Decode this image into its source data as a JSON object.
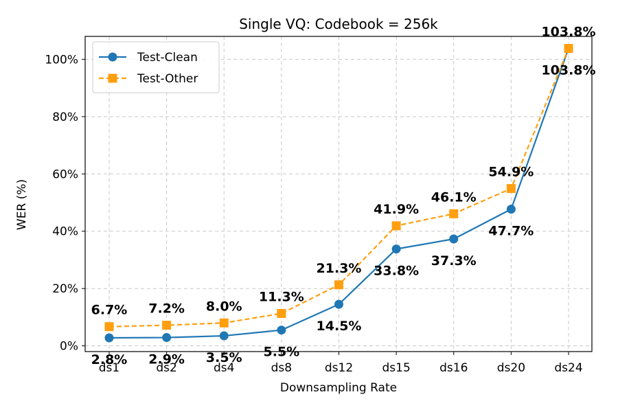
{
  "chart_data": {
    "type": "line",
    "title": "Single VQ: Codebook = 256k",
    "xlabel": "Downsampling Rate",
    "ylabel": "WER (%)",
    "categories": [
      "ds1",
      "ds2",
      "ds4",
      "ds8",
      "ds12",
      "ds15",
      "ds16",
      "ds20",
      "ds24"
    ],
    "ylim": [
      -2,
      108
    ],
    "yticks": [
      0,
      20,
      40,
      60,
      80,
      100
    ],
    "ytick_labels": [
      "0%",
      "20%",
      "40%",
      "60%",
      "80%",
      "100%"
    ],
    "grid": true,
    "legend_position": "top-left",
    "series": [
      {
        "name": "Test-Clean",
        "values": [
          2.8,
          2.9,
          3.5,
          5.5,
          14.5,
          33.8,
          37.3,
          47.7,
          103.8
        ],
        "labels": [
          "2.8%",
          "2.9%",
          "3.5%",
          "5.5%",
          "14.5%",
          "33.8%",
          "37.3%",
          "47.7%",
          "103.8%"
        ],
        "color": "#1f77b4",
        "marker": "circle",
        "linestyle": "solid",
        "label_placement": "below"
      },
      {
        "name": "Test-Other",
        "values": [
          6.7,
          7.2,
          8.0,
          11.3,
          21.3,
          41.9,
          46.1,
          54.9,
          103.8
        ],
        "labels": [
          "6.7%",
          "7.2%",
          "8.0%",
          "11.3%",
          "21.3%",
          "41.9%",
          "46.1%",
          "54.9%",
          "103.8%"
        ],
        "color": "#ff9f0f",
        "marker": "square",
        "linestyle": "dashed",
        "label_placement": "above"
      }
    ]
  }
}
